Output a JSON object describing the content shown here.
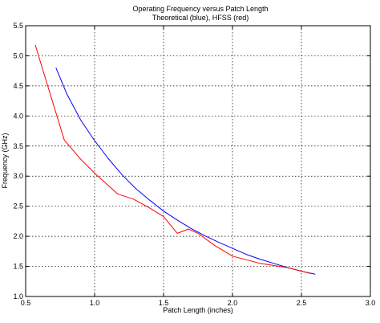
{
  "chart_data": {
    "type": "line",
    "title": "Operating Frequency versus Patch Length",
    "subtitle": "Theoretical (blue), HFSS (red)",
    "xlabel": "Patch Length (inches)",
    "ylabel": "Frequency (GHz)",
    "xlim": [
      0.5,
      3.0
    ],
    "ylim": [
      1.0,
      5.5
    ],
    "xticks": [
      0.5,
      1.0,
      1.5,
      2.0,
      2.5,
      3.0
    ],
    "xtick_labels": [
      "0.5",
      "1.0",
      "1.5",
      "2.0",
      "2.5",
      "3.0"
    ],
    "yticks": [
      1.0,
      1.5,
      2.0,
      2.5,
      3.0,
      3.5,
      4.0,
      4.5,
      5.0,
      5.5
    ],
    "ytick_labels": [
      "1.0",
      "1.5",
      "2.0",
      "2.5",
      "3.0",
      "3.5",
      "4.0",
      "4.5",
      "5.0",
      "5.5"
    ],
    "grid": true,
    "grid_style": "dotted",
    "series": [
      {
        "color": "#0000ff",
        "x": [
          0.72,
          0.8,
          0.9,
          1.0,
          1.1,
          1.2,
          1.3,
          1.4,
          1.5,
          1.6,
          1.7,
          1.8,
          1.9,
          2.0,
          2.1,
          2.2,
          2.3,
          2.4,
          2.5,
          2.6
        ],
        "y": [
          4.8,
          4.36,
          3.93,
          3.59,
          3.29,
          3.02,
          2.79,
          2.6,
          2.42,
          2.27,
          2.13,
          2.01,
          1.9,
          1.8,
          1.7,
          1.62,
          1.55,
          1.48,
          1.42,
          1.37
        ]
      },
      {
        "color": "#ff0000",
        "x": [
          0.57,
          0.7,
          0.78,
          0.9,
          1.0,
          1.17,
          1.28,
          1.4,
          1.5,
          1.6,
          1.68,
          1.75,
          1.87,
          2.0,
          2.2,
          2.4,
          2.57
        ],
        "y": [
          5.18,
          4.2,
          3.6,
          3.28,
          3.05,
          2.7,
          2.62,
          2.47,
          2.33,
          2.05,
          2.12,
          2.05,
          1.85,
          1.67,
          1.55,
          1.48,
          1.38
        ]
      }
    ]
  }
}
